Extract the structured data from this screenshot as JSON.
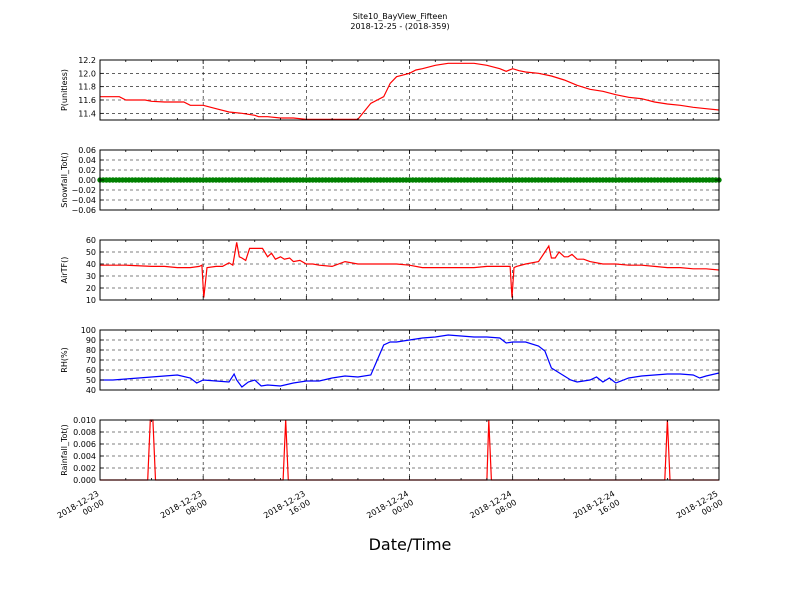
{
  "figure": {
    "title_line1": "Site10_BayView_Fifteen",
    "title_line2": "2018-12-25 - (2018-359)",
    "xlabel": "Date/Time"
  },
  "chart_data": [
    {
      "type": "line",
      "ylabel": "P(unitless)",
      "color": "#ff0000",
      "ylim": [
        11.3,
        12.2
      ],
      "yticks": [
        "12.2",
        "12.0",
        "11.8",
        "11.6",
        "11.4"
      ],
      "ytick_values": [
        12.2,
        12.0,
        11.8,
        11.6,
        11.4
      ],
      "xlim": [
        0,
        48
      ],
      "grid": true,
      "series": [
        {
          "x": [
            0,
            1.5,
            2,
            3.5,
            4,
            5,
            6.5,
            7,
            8,
            9,
            10,
            11,
            12,
            12.3,
            13,
            14,
            15,
            16,
            17,
            18,
            19,
            20,
            21,
            22,
            22.5,
            23,
            24,
            24.5,
            25,
            26,
            27,
            28,
            29,
            30,
            31,
            31.5,
            32,
            32.5,
            33,
            34,
            35,
            36,
            37,
            38,
            39,
            40,
            41,
            42,
            43,
            44,
            45,
            46,
            47,
            48
          ],
          "y": [
            11.65,
            11.65,
            11.6,
            11.6,
            11.58,
            11.57,
            11.57,
            11.52,
            11.52,
            11.47,
            11.42,
            11.4,
            11.37,
            11.35,
            11.35,
            11.33,
            11.33,
            11.31,
            11.31,
            11.31,
            11.31,
            11.31,
            11.55,
            11.65,
            11.85,
            11.95,
            12.0,
            12.05,
            12.07,
            12.12,
            12.15,
            12.15,
            12.15,
            12.12,
            12.07,
            12.03,
            12.07,
            12.04,
            12.02,
            12.0,
            11.96,
            11.9,
            11.82,
            11.76,
            11.73,
            11.68,
            11.64,
            11.62,
            11.57,
            11.54,
            11.52,
            11.49,
            11.47,
            11.45
          ]
        }
      ]
    },
    {
      "type": "scatter",
      "ylabel": "Snowfall_Tot()",
      "color": "#008000",
      "ylim": [
        -0.06,
        0.06
      ],
      "yticks": [
        "0.06",
        "0.04",
        "0.02",
        "0.00",
        "−0.02",
        "−0.04",
        "−0.06"
      ],
      "ytick_values": [
        0.06,
        0.04,
        0.02,
        0.0,
        -0.02,
        -0.04,
        -0.06
      ],
      "xlim": [
        0,
        48
      ],
      "grid": true,
      "series": [
        {
          "x_start": 0,
          "x_end": 48,
          "x_step": 0.25,
          "constant_y": 0.0
        }
      ]
    },
    {
      "type": "line",
      "ylabel": "AirTF()",
      "color": "#ff0000",
      "ylim": [
        10,
        60
      ],
      "yticks": [
        "60",
        "50",
        "40",
        "30",
        "20",
        "10"
      ],
      "ytick_values": [
        60,
        50,
        40,
        30,
        20,
        10
      ],
      "xlim": [
        0,
        48
      ],
      "grid": true,
      "series": [
        {
          "x": [
            0,
            2,
            4,
            5,
            6,
            7,
            7.7,
            7.9,
            8.05,
            8.3,
            9,
            9.5,
            10,
            10.3,
            10.6,
            10.8,
            11,
            11.3,
            11.6,
            12,
            12.3,
            12.6,
            13,
            13.3,
            13.6,
            14,
            14.3,
            14.7,
            15,
            15.5,
            16,
            16.5,
            17,
            18,
            19,
            20,
            21,
            22,
            23,
            24,
            25,
            26,
            27,
            28,
            29,
            30,
            31,
            31.8,
            31.95,
            32.1,
            32.3,
            33,
            34,
            34.5,
            34.8,
            35,
            35.3,
            35.6,
            36,
            36.3,
            36.6,
            37,
            37.5,
            38,
            39,
            40,
            41,
            42,
            43,
            44,
            45,
            46,
            47,
            48
          ],
          "y": [
            39,
            39,
            38,
            38,
            37,
            37,
            38,
            39,
            12,
            37,
            38,
            38,
            41,
            39,
            58,
            46,
            45,
            43,
            53,
            53,
            53,
            53,
            46,
            49,
            44,
            46,
            44,
            45,
            42,
            43,
            40,
            40,
            39,
            38,
            42,
            40,
            40,
            40,
            40,
            39,
            37,
            37,
            37,
            37,
            37,
            38,
            38,
            38,
            12,
            37,
            38,
            40,
            42,
            50,
            55,
            45,
            45,
            50,
            46,
            46,
            48,
            44,
            44,
            42,
            40,
            40,
            39,
            39,
            38,
            37,
            37,
            36,
            36,
            35
          ]
        }
      ]
    },
    {
      "type": "line",
      "ylabel": "RH(%)",
      "color": "#0000ff",
      "ylim": [
        40,
        100
      ],
      "yticks": [
        "100",
        "90",
        "80",
        "70",
        "60",
        "50",
        "40"
      ],
      "ytick_values": [
        100,
        90,
        80,
        70,
        60,
        50,
        40
      ],
      "xlim": [
        0,
        48
      ],
      "grid": true,
      "series": [
        {
          "x": [
            0,
            1,
            2,
            3,
            4,
            5,
            6,
            7,
            7.5,
            8,
            9,
            10,
            10.4,
            10.6,
            11,
            11.5,
            12,
            12.5,
            13,
            14,
            15,
            16,
            17,
            18,
            19,
            20,
            21,
            22,
            22.5,
            23,
            24,
            25,
            26,
            27,
            28,
            29,
            30,
            31,
            31.5,
            32,
            33,
            34,
            34.5,
            35,
            36,
            36.5,
            37,
            37.5,
            38,
            38.5,
            39,
            39.5,
            40,
            41,
            42,
            43,
            44,
            45,
            46,
            46.5,
            47,
            48
          ],
          "y": [
            50,
            50,
            51,
            52,
            53,
            54,
            55,
            52,
            47,
            50,
            49,
            48,
            56,
            50,
            43,
            48,
            50,
            44,
            45,
            44,
            47,
            49,
            49,
            52,
            54,
            53,
            55,
            85,
            88,
            88,
            90,
            92,
            93,
            95,
            94,
            93,
            93,
            92,
            87,
            88,
            88,
            84,
            79,
            62,
            54,
            50,
            48,
            49,
            50,
            53,
            48,
            52,
            47,
            52,
            54,
            55,
            56,
            56,
            55,
            52,
            54,
            57
          ]
        }
      ]
    },
    {
      "type": "line",
      "ylabel": "Rainfall_Tot()",
      "color": "#ff0000",
      "ylim": [
        0.0,
        0.01
      ],
      "yticks": [
        "0.010",
        "0.008",
        "0.006",
        "0.004",
        "0.002",
        "0.000"
      ],
      "ytick_values": [
        0.01,
        0.008,
        0.006,
        0.004,
        0.002,
        0.0
      ],
      "xlim": [
        0,
        48
      ],
      "grid": true,
      "series": [
        {
          "x": [
            0,
            3.7,
            3.9,
            4.1,
            4.3,
            14.2,
            14.4,
            14.6,
            30.0,
            30.15,
            30.35,
            43.8,
            44.0,
            44.2,
            48
          ],
          "y": [
            0,
            0,
            0.01,
            0.01,
            0,
            0,
            0.01,
            0,
            0,
            0.01,
            0,
            0,
            0.01,
            0,
            0
          ]
        }
      ]
    }
  ],
  "x_axis": {
    "tick_values": [
      0,
      8,
      16,
      24,
      32,
      40,
      48
    ],
    "tick_labels": [
      [
        "2018-12-23",
        "00:00"
      ],
      [
        "2018-12-23",
        "08:00"
      ],
      [
        "2018-12-23",
        "16:00"
      ],
      [
        "2018-12-24",
        "00:00"
      ],
      [
        "2018-12-24",
        "08:00"
      ],
      [
        "2018-12-24",
        "16:00"
      ],
      [
        "2018-12-25",
        "00:00"
      ]
    ]
  }
}
